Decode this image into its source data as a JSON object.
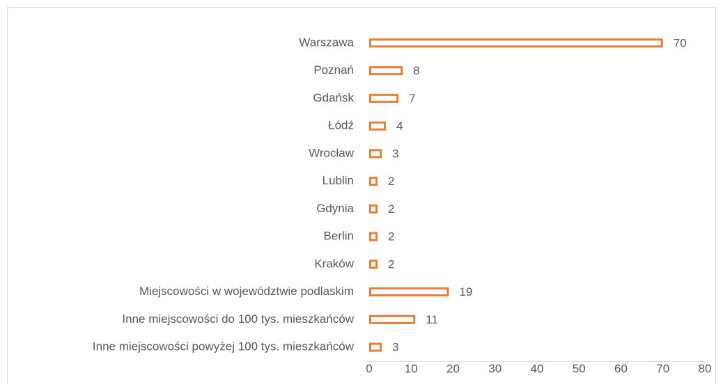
{
  "chart_data": {
    "type": "bar",
    "orientation": "horizontal",
    "categories": [
      "Warszawa",
      "Poznań",
      "Gdańsk",
      "Łódź",
      "Wrocław",
      "Lublin",
      "Gdynia",
      "Berlin",
      "Kraków",
      "Miejscowości w województwie podlaskim",
      "Inne miejscowości do 100 tys. mieszkańców",
      "Inne miejscowości powyżej 100 tys. mieszkańców"
    ],
    "values": [
      70,
      8,
      7,
      4,
      3,
      2,
      2,
      2,
      2,
      19,
      11,
      3
    ],
    "color": "#ed7d31",
    "xlim": [
      0,
      80
    ],
    "xticks": [
      0,
      10,
      20,
      30,
      40,
      50,
      60,
      70,
      80
    ],
    "grid": false
  }
}
